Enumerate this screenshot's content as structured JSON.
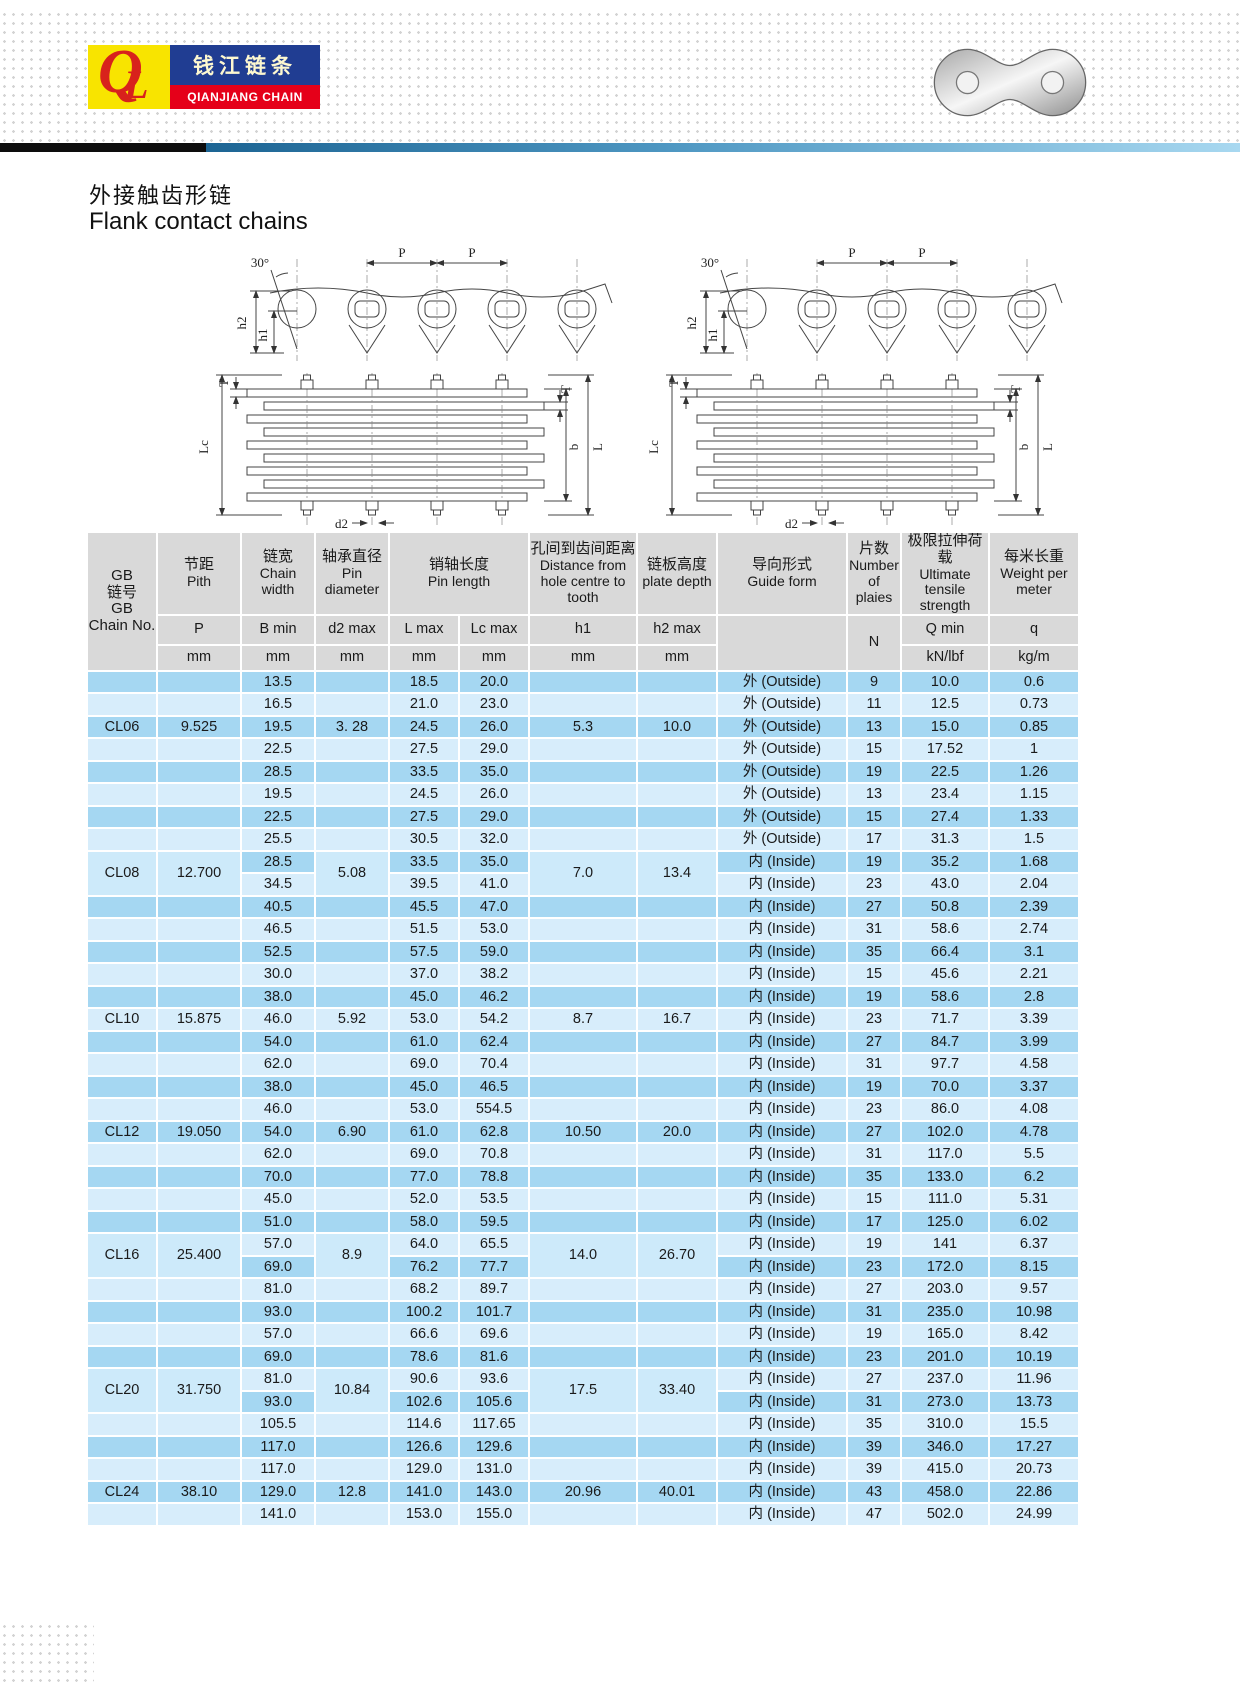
{
  "brand": {
    "mark_q": "Q",
    "mark_l": "L",
    "name_cn": "钱江链条",
    "name_en": "QIANJIANG CHAIN"
  },
  "title": {
    "cn": "外接触齿形链",
    "en": "Flank contact chains"
  },
  "diagram": {
    "labels": {
      "angle": "30°",
      "p": "P",
      "h2": "h2",
      "h1": "h1",
      "lc": "Lc",
      "t": "T",
      "b": "b",
      "l": "L",
      "d2": "d2"
    }
  },
  "table": {
    "header": {
      "chain_no": {
        "lines": "GB\n链号\nGB\nChain No."
      },
      "pitch": {
        "cn": "节距",
        "en": "Pith",
        "sym": "P",
        "unit": "mm"
      },
      "width": {
        "cn": "链宽",
        "en": "Chain width",
        "sym": "B min",
        "unit": "mm"
      },
      "pin_dia": {
        "cn": "轴承直径",
        "en": "Pin diameter",
        "sym": "d2 max",
        "unit": "mm"
      },
      "pin_len": {
        "cn": "销轴长度",
        "en": "Pin length",
        "sym_l": "L max",
        "unit_l": "mm",
        "sym_lc": "Lc max",
        "unit_lc": "mm"
      },
      "distance": {
        "cn": "孔间到齿间距离",
        "en": "Distance from hole centre to tooth",
        "sym": "h1",
        "unit": "mm"
      },
      "plate_depth": {
        "cn": "链板高度",
        "en": "plate depth",
        "sym": "h2 max",
        "unit": "mm"
      },
      "guide": {
        "cn": "导向形式",
        "en": "Guide form"
      },
      "plies": {
        "cn": "片数",
        "en": "Number of plaies",
        "sym": "N"
      },
      "tensile": {
        "cn": "极限拉伸荷载",
        "en": "Ultimate tensile strength",
        "sym": "Q min",
        "unit": "kN/lbf"
      },
      "weight": {
        "cn": "每米长重",
        "en": "Weight per meter",
        "sym": "q",
        "unit": "kg/m"
      }
    },
    "groups": [
      {
        "chain_no": "CL06",
        "pitch": "9.525",
        "d2": "3. 28",
        "h1": "5.3",
        "h2": "10.0",
        "rows": [
          {
            "b": "13.5",
            "l": "18.5",
            "lc": "20.0",
            "guide": "外  (Outside)",
            "n": "9",
            "q_min": "10.0",
            "q": "0.6"
          },
          {
            "b": "16.5",
            "l": "21.0",
            "lc": "23.0",
            "guide": "外  (Outside)",
            "n": "11",
            "q_min": "12.5",
            "q": "0.73"
          },
          {
            "b": "19.5",
            "l": "24.5",
            "lc": "26.0",
            "guide": "外  (Outside)",
            "n": "13",
            "q_min": "15.0",
            "q": "0.85"
          },
          {
            "b": "22.5",
            "l": "27.5",
            "lc": "29.0",
            "guide": "外  (Outside)",
            "n": "15",
            "q_min": "17.52",
            "q": "1"
          },
          {
            "b": "28.5",
            "l": "33.5",
            "lc": "35.0",
            "guide": "外  (Outside)",
            "n": "19",
            "q_min": "22.5",
            "q": "1.26"
          }
        ]
      },
      {
        "chain_no": "CL08",
        "pitch": "12.700",
        "d2": "5.08",
        "h1": "7.0",
        "h2": "13.4",
        "rows": [
          {
            "b": "19.5",
            "l": "24.5",
            "lc": "26.0",
            "guide": "外  (Outside)",
            "n": "13",
            "q_min": "23.4",
            "q": "1.15"
          },
          {
            "b": "22.5",
            "l": "27.5",
            "lc": "29.0",
            "guide": "外  (Outside)",
            "n": "15",
            "q_min": "27.4",
            "q": "1.33"
          },
          {
            "b": "25.5",
            "l": "30.5",
            "lc": "32.0",
            "guide": "外  (Outside)",
            "n": "17",
            "q_min": "31.3",
            "q": "1.5"
          },
          {
            "b": "28.5",
            "l": "33.5",
            "lc": "35.0",
            "guide": "内  (Inside)",
            "n": "19",
            "q_min": "35.2",
            "q": "1.68"
          },
          {
            "b": "34.5",
            "l": "39.5",
            "lc": "41.0",
            "guide": "内  (Inside)",
            "n": "23",
            "q_min": "43.0",
            "q": "2.04"
          },
          {
            "b": "40.5",
            "l": "45.5",
            "lc": "47.0",
            "guide": "内  (Inside)",
            "n": "27",
            "q_min": "50.8",
            "q": "2.39"
          },
          {
            "b": "46.5",
            "l": "51.5",
            "lc": "53.0",
            "guide": "内  (Inside)",
            "n": "31",
            "q_min": "58.6",
            "q": "2.74"
          },
          {
            "b": "52.5",
            "l": "57.5",
            "lc": "59.0",
            "guide": "内  (Inside)",
            "n": "35",
            "q_min": "66.4",
            "q": "3.1"
          }
        ]
      },
      {
        "chain_no": "CL10",
        "pitch": "15.875",
        "d2": "5.92",
        "h1": "8.7",
        "h2": "16.7",
        "rows": [
          {
            "b": "30.0",
            "l": "37.0",
            "lc": "38.2",
            "guide": "内  (Inside)",
            "n": "15",
            "q_min": "45.6",
            "q": "2.21"
          },
          {
            "b": "38.0",
            "l": "45.0",
            "lc": "46.2",
            "guide": "内  (Inside)",
            "n": "19",
            "q_min": "58.6",
            "q": "2.8"
          },
          {
            "b": "46.0",
            "l": "53.0",
            "lc": "54.2",
            "guide": "内  (Inside)",
            "n": "23",
            "q_min": "71.7",
            "q": "3.39"
          },
          {
            "b": "54.0",
            "l": "61.0",
            "lc": "62.4",
            "guide": "内  (Inside)",
            "n": "27",
            "q_min": "84.7",
            "q": "3.99"
          },
          {
            "b": "62.0",
            "l": "69.0",
            "lc": "70.4",
            "guide": "内  (Inside)",
            "n": "31",
            "q_min": "97.7",
            "q": "4.58"
          }
        ]
      },
      {
        "chain_no": "CL12",
        "pitch": "19.050",
        "d2": "6.90",
        "h1": "10.50",
        "h2": "20.0",
        "rows": [
          {
            "b": "38.0",
            "l": "45.0",
            "lc": "46.5",
            "guide": "内  (Inside)",
            "n": "19",
            "q_min": "70.0",
            "q": "3.37"
          },
          {
            "b": "46.0",
            "l": "53.0",
            "lc": "554.5",
            "guide": "内  (Inside)",
            "n": "23",
            "q_min": "86.0",
            "q": "4.08"
          },
          {
            "b": "54.0",
            "l": "61.0",
            "lc": "62.8",
            "guide": "内  (Inside)",
            "n": "27",
            "q_min": "102.0",
            "q": "4.78"
          },
          {
            "b": "62.0",
            "l": "69.0",
            "lc": "70.8",
            "guide": "内  (Inside)",
            "n": "31",
            "q_min": "117.0",
            "q": "5.5"
          },
          {
            "b": "70.0",
            "l": "77.0",
            "lc": "78.8",
            "guide": "内  (Inside)",
            "n": "35",
            "q_min": "133.0",
            "q": "6.2"
          }
        ]
      },
      {
        "chain_no": "CL16",
        "pitch": "25.400",
        "d2": "8.9",
        "h1": "14.0",
        "h2": "26.70",
        "rows": [
          {
            "b": "45.0",
            "l": "52.0",
            "lc": "53.5",
            "guide": "内  (Inside)",
            "n": "15",
            "q_min": "111.0",
            "q": "5.31"
          },
          {
            "b": "51.0",
            "l": "58.0",
            "lc": "59.5",
            "guide": "内  (Inside)",
            "n": "17",
            "q_min": "125.0",
            "q": "6.02"
          },
          {
            "b": "57.0",
            "l": "64.0",
            "lc": "65.5",
            "guide": "内  (Inside)",
            "n": "19",
            "q_min": "141",
            "q": "6.37"
          },
          {
            "b": "69.0",
            "l": "76.2",
            "lc": "77.7",
            "guide": "内  (Inside)",
            "n": "23",
            "q_min": "172.0",
            "q": "8.15"
          },
          {
            "b": "81.0",
            "l": "68.2",
            "lc": "89.7",
            "guide": "内  (Inside)",
            "n": "27",
            "q_min": "203.0",
            "q": "9.57"
          },
          {
            "b": "93.0",
            "l": "100.2",
            "lc": "101.7",
            "guide": "内  (Inside)",
            "n": "31",
            "q_min": "235.0",
            "q": "10.98"
          }
        ]
      },
      {
        "chain_no": "CL20",
        "pitch": "31.750",
        "d2": "10.84",
        "h1": "17.5",
        "h2": "33.40",
        "rows": [
          {
            "b": "57.0",
            "l": "66.6",
            "lc": "69.6",
            "guide": "内  (Inside)",
            "n": "19",
            "q_min": "165.0",
            "q": "8.42"
          },
          {
            "b": "69.0",
            "l": "78.6",
            "lc": "81.6",
            "guide": "内  (Inside)",
            "n": "23",
            "q_min": "201.0",
            "q": "10.19"
          },
          {
            "b": "81.0",
            "l": "90.6",
            "lc": "93.6",
            "guide": "内  (Inside)",
            "n": "27",
            "q_min": "237.0",
            "q": "11.96"
          },
          {
            "b": "93.0",
            "l": "102.6",
            "lc": "105.6",
            "guide": "内  (Inside)",
            "n": "31",
            "q_min": "273.0",
            "q": "13.73"
          },
          {
            "b": "105.5",
            "l": "114.6",
            "lc": "117.65",
            "guide": "内  (Inside)",
            "n": "35",
            "q_min": "310.0",
            "q": "15.5"
          },
          {
            "b": "117.0",
            "l": "126.6",
            "lc": "129.6",
            "guide": "内  (Inside)",
            "n": "39",
            "q_min": "346.0",
            "q": "17.27"
          }
        ]
      },
      {
        "chain_no": "CL24",
        "pitch": "38.10",
        "d2": "12.8",
        "h1": "20.96",
        "h2": "40.01",
        "rows": [
          {
            "b": "117.0",
            "l": "129.0",
            "lc": "131.0",
            "guide": "内  (Inside)",
            "n": "39",
            "q_min": "415.0",
            "q": "20.73"
          },
          {
            "b": "129.0",
            "l": "141.0",
            "lc": "143.0",
            "guide": "内  (Inside)",
            "n": "43",
            "q_min": "458.0",
            "q": "22.86"
          },
          {
            "b": "141.0",
            "l": "153.0",
            "lc": "155.0",
            "guide": "内  (Inside)",
            "n": "47",
            "q_min": "502.0",
            "q": "24.99"
          }
        ]
      }
    ]
  }
}
